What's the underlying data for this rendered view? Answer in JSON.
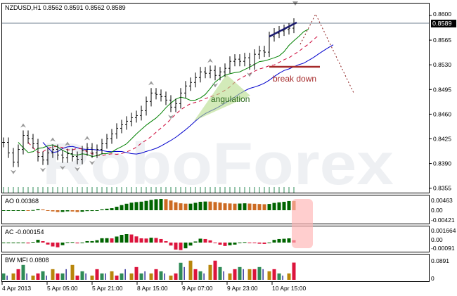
{
  "header": {
    "symbol_line": "NZDUSD,H1  0.8562 0.8591 0.8562 0.8589"
  },
  "watermark": "RoboForex",
  "chart_data": {
    "type": "bar",
    "symbol": "NZDUSD",
    "timeframe": "H1",
    "ohlc_last": [
      0.8562,
      0.8591,
      0.8562,
      0.8589
    ],
    "current_price": "0.8589",
    "ylim": [
      0.8355,
      0.86
    ],
    "y_ticks": [
      "0.8600",
      "0.8565",
      "0.8530",
      "0.8495",
      "0.8460",
      "0.8425",
      "0.8390",
      "0.8355"
    ],
    "x_ticks": [
      "4 Apr 2013",
      "5 Apr 05:00",
      "5 Apr 21:00",
      "8 Apr 15:00",
      "9 Apr 07:00",
      "9 Apr 23:00",
      "10 Apr 15:00"
    ],
    "close": [
      0.842,
      0.8405,
      0.8392,
      0.841,
      0.843,
      0.8425,
      0.8418,
      0.84,
      0.8395,
      0.8405,
      0.841,
      0.8402,
      0.8398,
      0.8404,
      0.84,
      0.8396,
      0.8408,
      0.8412,
      0.8405,
      0.841,
      0.8418,
      0.8425,
      0.8432,
      0.844,
      0.8445,
      0.845,
      0.8455,
      0.8458,
      0.8465,
      0.8478,
      0.849,
      0.8488,
      0.8485,
      0.848,
      0.847,
      0.8475,
      0.849,
      0.85,
      0.8505,
      0.8512,
      0.852,
      0.8518,
      0.8522,
      0.8515,
      0.852,
      0.8525,
      0.8535,
      0.8538,
      0.8535,
      0.854,
      0.853,
      0.8545,
      0.855,
      0.8548,
      0.857,
      0.8575,
      0.8578,
      0.858,
      0.8582,
      0.8589
    ],
    "annotations": {
      "angulation": "angulation",
      "break_down": "break down"
    },
    "colors": {
      "jaw": "#0000cc",
      "teeth": "#cc0033",
      "lips": "#008000",
      "up": "#006400",
      "down": "#cc6a22",
      "mfi_green": "#2e8b57",
      "mfi_red": "#dc143c",
      "mfi_gold": "#b8860b",
      "mfi_blue": "#000080",
      "annotation": "#8b1a1a"
    },
    "indicators": {
      "ao": {
        "label": "AO 0.00368",
        "ticks": [
          "0.00463",
          "0.00",
          "-0.00421"
        ]
      },
      "ac": {
        "label": "AC -0.000154",
        "ticks": [
          "0.001664",
          "0.00",
          "-0.00091"
        ]
      },
      "mfi": {
        "label": "BW MFI 0.0808",
        "ticks": [
          "0.0891",
          "0"
        ],
        "values": [
          0.03,
          0.02,
          0.03,
          0.05,
          0.07,
          0.03,
          0.02,
          0.03,
          0.04,
          0.02,
          0.05,
          0.03,
          0.03,
          0.05,
          0.07,
          0.02,
          0.04,
          0.03,
          0.02,
          0.05,
          0.03,
          0.03,
          0.04,
          0.02,
          0.03,
          0.05,
          0.03,
          0.06,
          0.03,
          0.04,
          0.03,
          0.05,
          0.04,
          0.03,
          0.02,
          0.03,
          0.08,
          0.06,
          0.09,
          0.05,
          0.04,
          0.03,
          0.07,
          0.09,
          0.06,
          0.04,
          0.03,
          0.05,
          0.06,
          0.05,
          0.05,
          0.05,
          0.06,
          0.05,
          0.04,
          0.05,
          0.03,
          0.02,
          0.03,
          0.0808
        ]
      }
    }
  }
}
